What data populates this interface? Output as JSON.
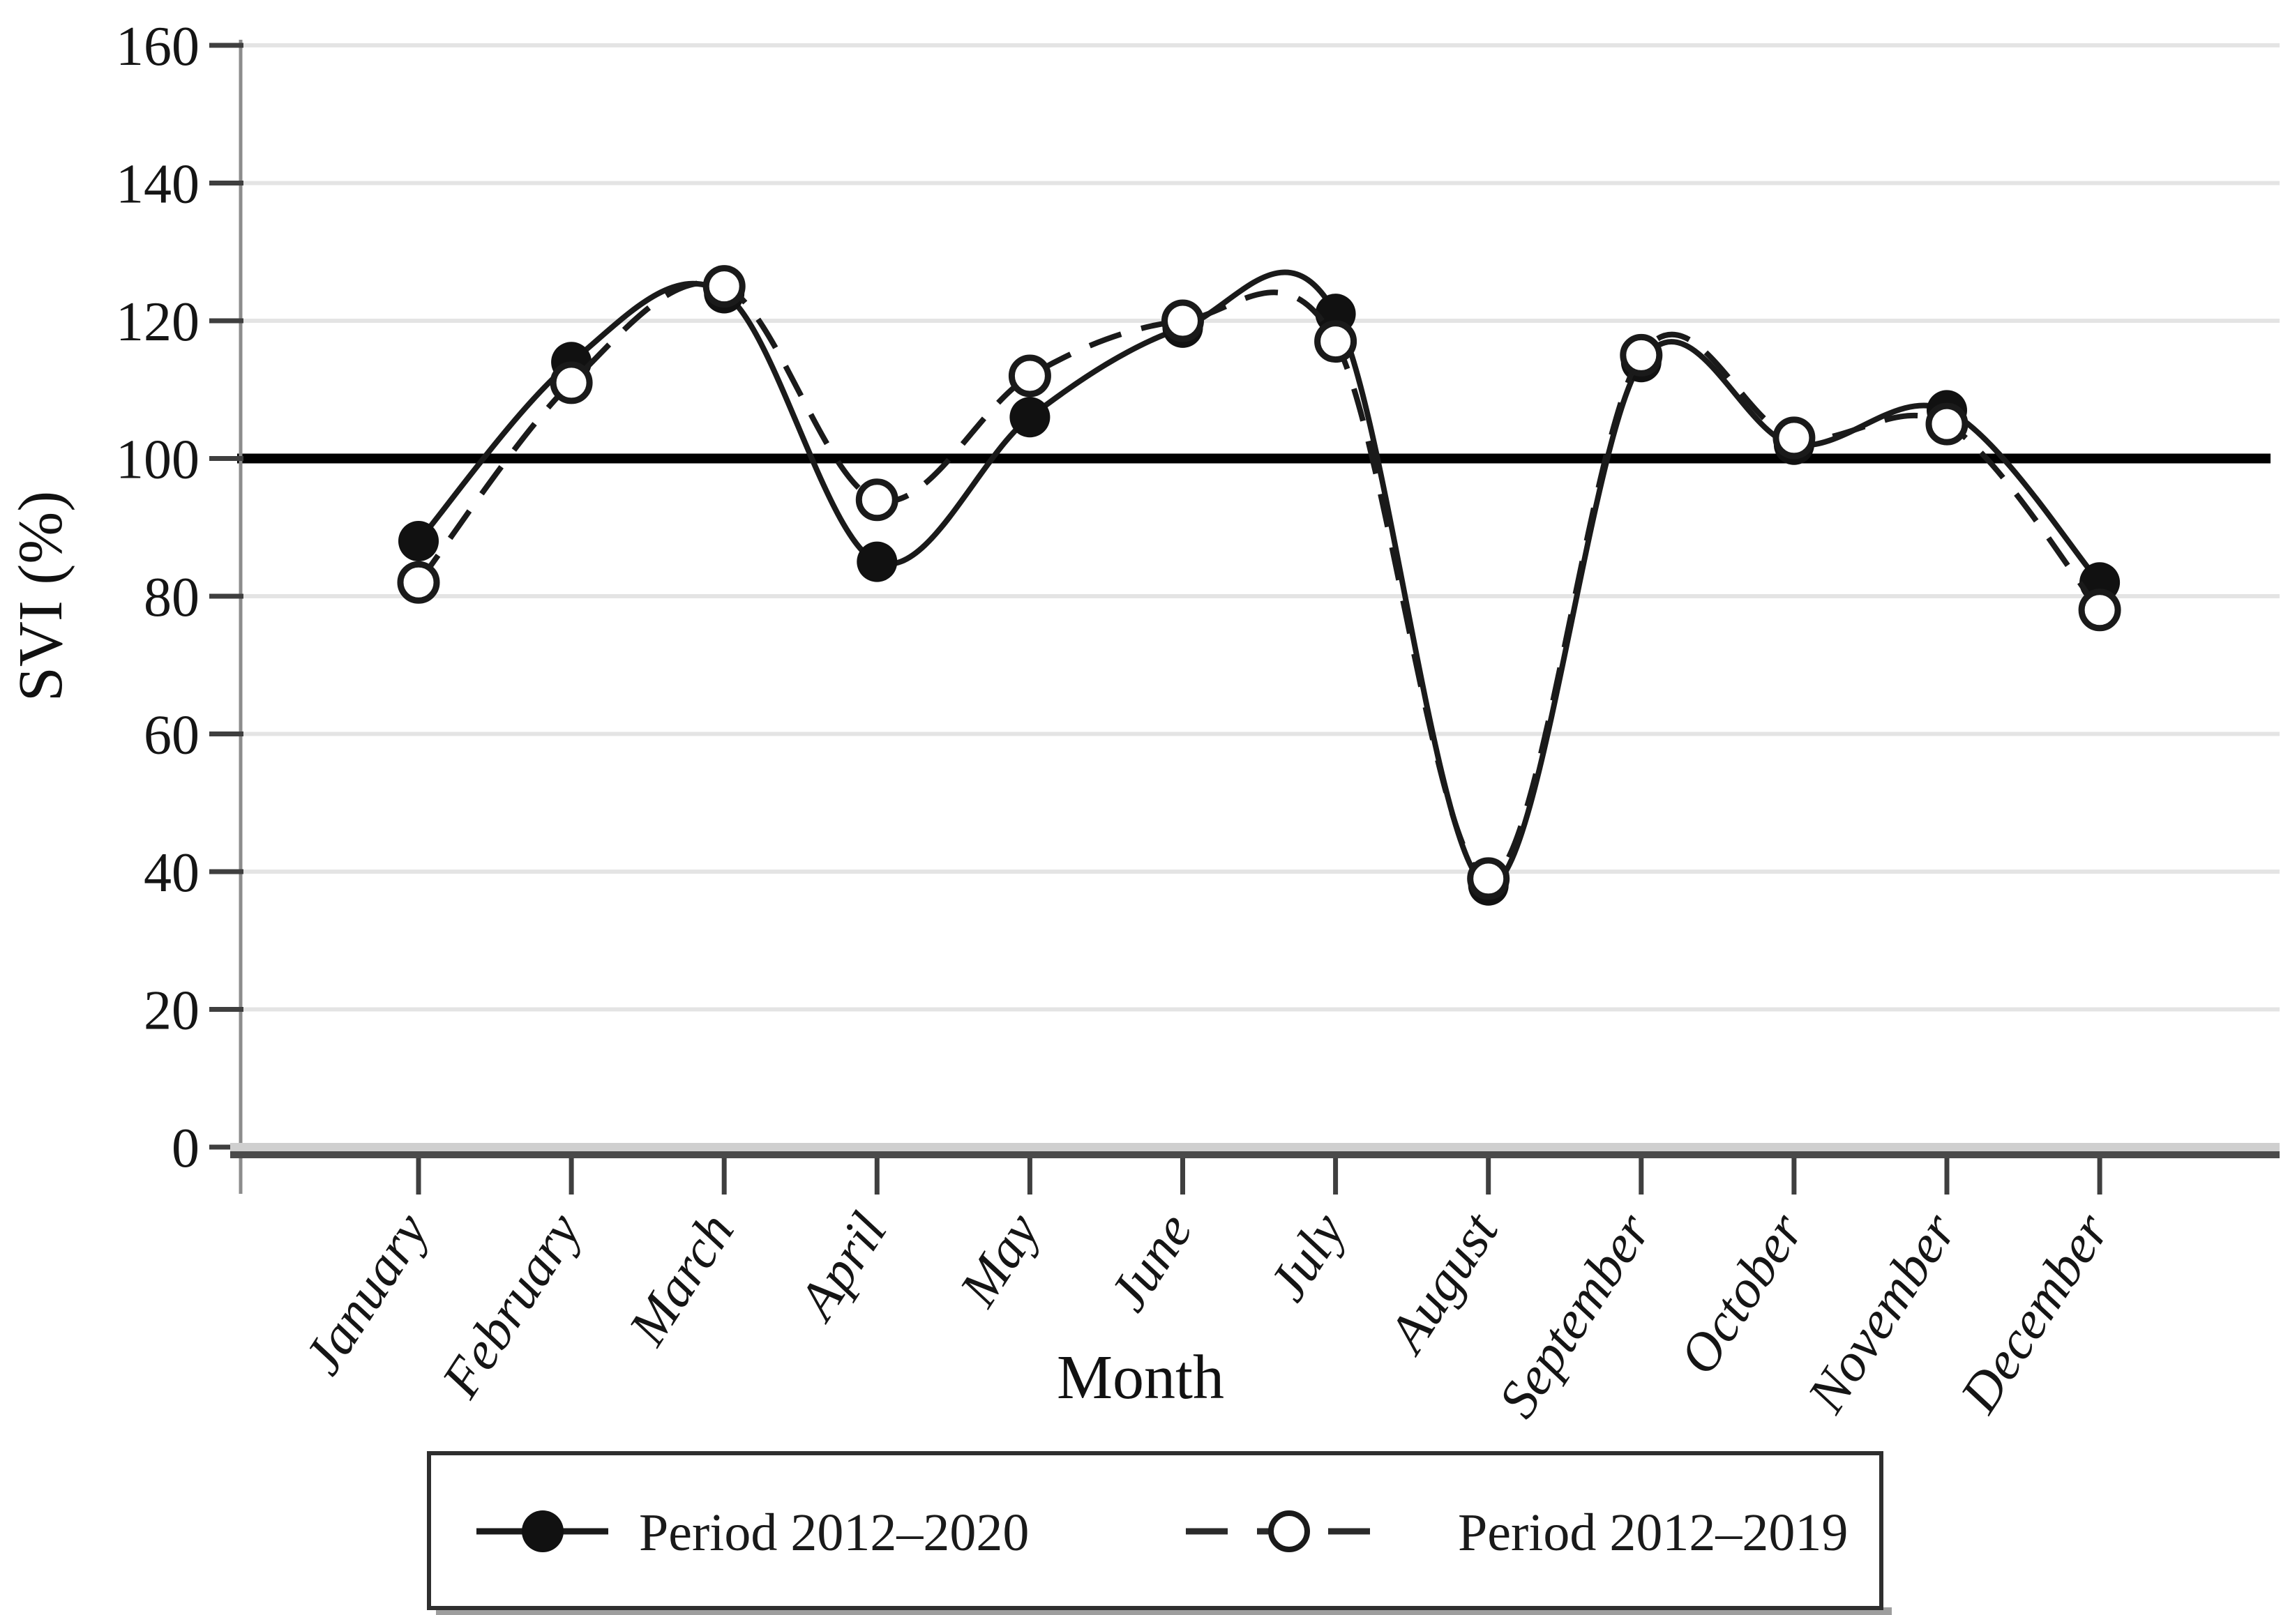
{
  "chart_data": {
    "type": "line",
    "title": "",
    "xlabel": "Month",
    "ylabel": "SVI (%)",
    "ylim": [
      0,
      160
    ],
    "yticks": [
      0,
      20,
      40,
      60,
      80,
      100,
      120,
      140,
      160
    ],
    "reference_line_y": 100,
    "grid": "horizontal",
    "legend_position": "bottom",
    "categories": [
      "January",
      "February",
      "March",
      "April",
      "May",
      "June",
      "July",
      "August",
      "September",
      "October",
      "November",
      "December"
    ],
    "series": [
      {
        "name": "Period 2012–2020",
        "line_style": "solid",
        "marker": "filled-circle",
        "color": "#1a1a1a",
        "values": [
          88,
          114,
          124,
          85,
          106,
          119,
          121,
          38,
          114,
          102,
          107,
          82
        ]
      },
      {
        "name": "Period 2012–2019",
        "line_style": "dashed",
        "marker": "open-circle",
        "color": "#1a1a1a",
        "values": [
          82,
          111,
          125,
          94,
          112,
          120,
          117,
          39,
          115,
          103,
          105,
          78
        ]
      }
    ],
    "colors": {
      "grid": "#e4e4e4",
      "reference_line": "#000000",
      "axis_line": "#8c8c8c",
      "tick": "#3f3f3f",
      "x_axis_dark": "#4a4a4a",
      "x_axis_light": "#cfcfcf",
      "text": "#111111"
    }
  }
}
